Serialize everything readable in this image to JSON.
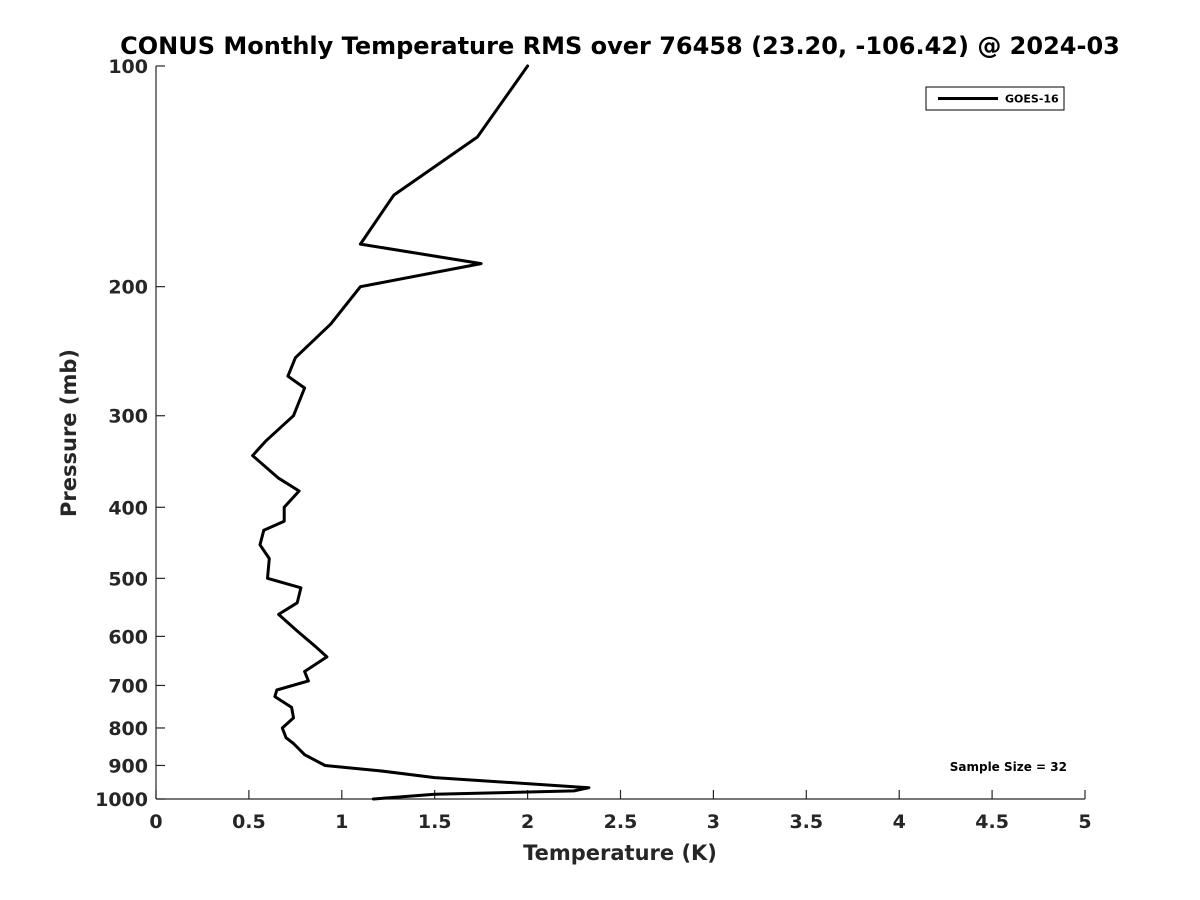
{
  "chart_data": {
    "type": "line",
    "title": "CONUS Monthly Temperature RMS over 76458 (23.20, -106.42) @ 2024-03",
    "xlabel": "Temperature (K)",
    "ylabel": "Pressure (mb)",
    "xlim": [
      0,
      5
    ],
    "ylim": [
      1000,
      100
    ],
    "y_scale": "log",
    "y_direction": "reversed",
    "grid": false,
    "legend_position": "top-right",
    "x_ticks": [
      "0",
      "0.5",
      "1",
      "1.5",
      "2",
      "2.5",
      "3",
      "3.5",
      "4",
      "4.5",
      "5"
    ],
    "y_ticks": [
      "100",
      "200",
      "300",
      "400",
      "500",
      "600",
      "700",
      "800",
      "900",
      "1000"
    ],
    "annotation": "Sample Size = 32",
    "series": [
      {
        "name": "GOES-16",
        "color": "#000000",
        "points": [
          [
            2.0,
            100
          ],
          [
            1.73,
            125
          ],
          [
            1.28,
            150
          ],
          [
            1.1,
            175
          ],
          [
            1.75,
            186
          ],
          [
            1.1,
            200
          ],
          [
            0.94,
            225
          ],
          [
            0.75,
            250
          ],
          [
            0.71,
            265
          ],
          [
            0.8,
            275
          ],
          [
            0.74,
            300
          ],
          [
            0.59,
            325
          ],
          [
            0.52,
            340
          ],
          [
            0.66,
            365
          ],
          [
            0.77,
            380
          ],
          [
            0.69,
            400
          ],
          [
            0.69,
            418
          ],
          [
            0.58,
            430
          ],
          [
            0.56,
            450
          ],
          [
            0.61,
            470
          ],
          [
            0.6,
            500
          ],
          [
            0.78,
            515
          ],
          [
            0.76,
            540
          ],
          [
            0.66,
            560
          ],
          [
            0.76,
            590
          ],
          [
            0.86,
            620
          ],
          [
            0.92,
            640
          ],
          [
            0.8,
            670
          ],
          [
            0.82,
            690
          ],
          [
            0.65,
            710
          ],
          [
            0.64,
            725
          ],
          [
            0.73,
            750
          ],
          [
            0.74,
            775
          ],
          [
            0.68,
            800
          ],
          [
            0.7,
            825
          ],
          [
            0.74,
            840
          ],
          [
            0.8,
            870
          ],
          [
            0.91,
            900
          ],
          [
            1.2,
            915
          ],
          [
            1.5,
            935
          ],
          [
            2.33,
            965
          ],
          [
            2.25,
            975
          ],
          [
            1.5,
            985
          ],
          [
            1.17,
            1000
          ]
        ]
      }
    ]
  }
}
